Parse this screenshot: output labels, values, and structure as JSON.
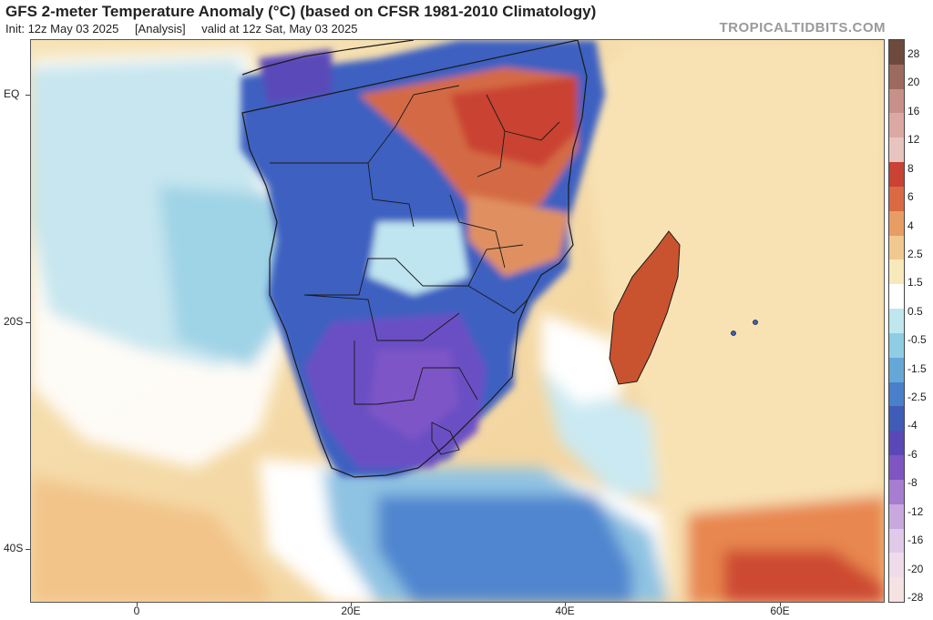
{
  "header": {
    "title": "GFS 2-meter Temperature Anomaly (°C) (based on CFSR 1981-2010 Climatology)",
    "init": "Init: 12z May 03 2025",
    "analysis": "[Analysis]",
    "valid": "valid at 12z Sat, May 03 2025",
    "brand": "TROPICALTIDBITS.COM"
  },
  "axes": {
    "lat_labels": [
      "EQ",
      "20S",
      "40S"
    ],
    "lon_labels": [
      "0",
      "20E",
      "40E",
      "60E"
    ]
  },
  "colorbar": {
    "labels": [
      "28",
      "20",
      "16",
      "12",
      "8",
      "6",
      "4",
      "2.5",
      "1.5",
      "0.5",
      "-0.5",
      "-1.5",
      "-2.5",
      "-4",
      "-6",
      "-8",
      "-12",
      "-16",
      "-20",
      "-28"
    ],
    "colors": [
      "#6e4a3c",
      "#9c6a5e",
      "#c79089",
      "#dba9a4",
      "#e8c4c0",
      "#c94233",
      "#db6944",
      "#e89d64",
      "#f1c88e",
      "#f8e9bd",
      "#ffffff",
      "#bfe8ee",
      "#8fcde3",
      "#64a8d8",
      "#4a7fcb",
      "#3f5cb7",
      "#5a48b9",
      "#7f55c4",
      "#a67dd0",
      "#c9a8de",
      "#e1c9ea",
      "#efdcea",
      "#f5e2e2"
    ]
  },
  "map": {
    "ocean_warm": "#f7ddb0",
    "ocean_cool": "#cde9f0",
    "land_cold": "#3f62c0",
    "land_very_cold": "#6a4fc4",
    "land_warm": "#cf5a3a",
    "border_color": "#1a1a1a"
  }
}
